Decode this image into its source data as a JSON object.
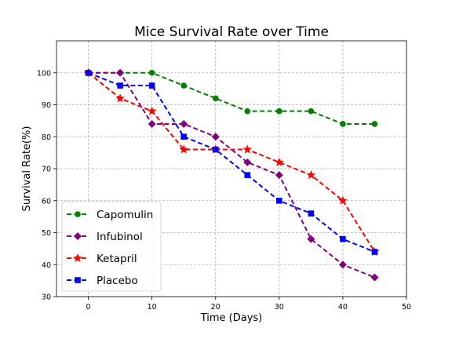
{
  "chart_data": {
    "type": "line",
    "title": "Mice Survival Rate over Time",
    "xlabel": "Time (Days)",
    "ylabel": "Survival Rate(%)",
    "xlim": [
      -5,
      50
    ],
    "ylim": [
      30,
      110
    ],
    "xticks": [
      0,
      10,
      20,
      30,
      40,
      50
    ],
    "yticks": [
      30,
      40,
      50,
      60,
      70,
      80,
      90,
      100
    ],
    "grid": true,
    "legend_position": "lower-left",
    "x": [
      0,
      5,
      10,
      15,
      20,
      25,
      30,
      35,
      40,
      45
    ],
    "series": [
      {
        "name": "Capomulin",
        "color": "#008000",
        "marker": "circle",
        "values": [
          100,
          100,
          100,
          96,
          92,
          88,
          88,
          88,
          84,
          84
        ]
      },
      {
        "name": "Infubinol",
        "color": "#800080",
        "marker": "diamond",
        "values": [
          100,
          100,
          84,
          84,
          80,
          72,
          68,
          48,
          40,
          36
        ]
      },
      {
        "name": "Ketapril",
        "color": "#ff0000",
        "marker": "star",
        "values": [
          100,
          92,
          88,
          76,
          76,
          76,
          72,
          68,
          60,
          44
        ]
      },
      {
        "name": "Placebo",
        "color": "#0000ff",
        "marker": "square",
        "values": [
          100,
          96,
          96,
          80,
          76,
          68,
          60,
          56,
          48,
          44
        ]
      }
    ]
  }
}
